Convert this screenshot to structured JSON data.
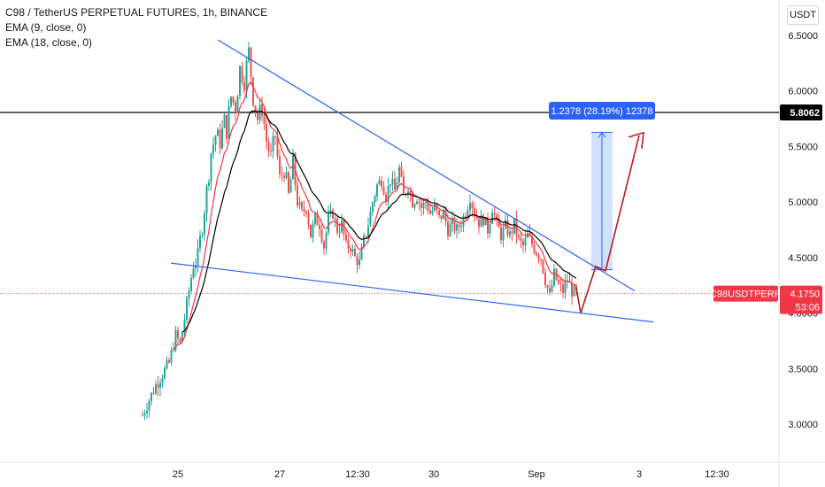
{
  "header": {
    "title": "C98 / TetherUS PERPETUAL FUTURES, 1h, BINANCE",
    "indicators": [
      "EMA (9, close, 0)",
      "EMA (18, close, 0)"
    ]
  },
  "price_axis": {
    "unit_label": "USDT",
    "ticks": [
      "6.5000",
      "6.0000",
      "5.5000",
      "5.0000",
      "4.5000",
      "4.0000",
      "3.5000",
      "3.0000"
    ],
    "horizontal_line_label": "5.8062",
    "horizontal_line_value": 5.8062,
    "current_price_label": "4.1750",
    "current_price_value": 4.175,
    "countdown": "53:06",
    "symbol_tag": "C98USDTPERP",
    "colors": {
      "tag_red": "#f23645",
      "line_black": "#000000"
    }
  },
  "time_axis": {
    "labels": [
      "25",
      "27",
      "12:30",
      "30",
      "Sep",
      "3",
      "12:30"
    ]
  },
  "measure_tool": {
    "label": "1.2378 (28.19%) 12378",
    "from_price": 4.39,
    "to_price": 5.628,
    "color": "#2962ff"
  },
  "colors": {
    "up": "#26a69a",
    "down": "#ef5350",
    "ema9": "#f23645",
    "ema18": "#000000",
    "trendline": "#2962ff",
    "projection": "#b71c1c"
  },
  "chart_data": {
    "type": "candlestick",
    "title": "C98 / TetherUS PERPETUAL FUTURES, 1h, BINANCE",
    "series": [
      {
        "name": "EMA (9, close, 0)",
        "type": "line"
      },
      {
        "name": "EMA (18, close, 0)",
        "type": "line"
      }
    ],
    "x_ticks": [
      "25",
      "27",
      "12:30",
      "30",
      "Sep",
      "3",
      "12:30"
    ],
    "ylim": [
      2.55,
      6.85
    ],
    "y_ticks": [
      6.5,
      6.0,
      5.5,
      5.0,
      4.5,
      4.0,
      3.5,
      3.0
    ],
    "price_path": [
      [
        0,
        3.08
      ],
      [
        3,
        3.22
      ],
      [
        6,
        3.35
      ],
      [
        9,
        3.45
      ],
      [
        12,
        3.55
      ],
      [
        15,
        3.8
      ],
      [
        17,
        3.72
      ],
      [
        19,
        3.95
      ],
      [
        21,
        4.2
      ],
      [
        23,
        4.45
      ],
      [
        25,
        4.5
      ],
      [
        27,
        4.8
      ],
      [
        29,
        5.1
      ],
      [
        31,
        5.45
      ],
      [
        33,
        5.6
      ],
      [
        35,
        5.55
      ],
      [
        37,
        5.72
      ],
      [
        38,
        5.65
      ],
      [
        40,
        5.95
      ],
      [
        42,
        5.85
      ],
      [
        44,
        6.2
      ],
      [
        46,
        6.1
      ],
      [
        48,
        6.35
      ],
      [
        50,
        5.95
      ],
      [
        52,
        5.75
      ],
      [
        54,
        5.85
      ],
      [
        56,
        5.55
      ],
      [
        58,
        5.4
      ],
      [
        60,
        5.6
      ],
      [
        62,
        5.2
      ],
      [
        64,
        5.3
      ],
      [
        66,
        5.05
      ],
      [
        68,
        5.35
      ],
      [
        70,
        5.0
      ],
      [
        72,
        4.9
      ],
      [
        74,
        4.95
      ],
      [
        76,
        4.7
      ],
      [
        78,
        4.85
      ],
      [
        80,
        4.8
      ],
      [
        82,
        4.6
      ],
      [
        84,
        4.85
      ],
      [
        86,
        4.9
      ],
      [
        88,
        4.75
      ],
      [
        90,
        4.8
      ],
      [
        92,
        4.6
      ],
      [
        94,
        4.6
      ],
      [
        96,
        4.5
      ],
      [
        98,
        4.45
      ],
      [
        100,
        4.65
      ],
      [
        102,
        4.8
      ],
      [
        104,
        5.0
      ],
      [
        106,
        5.15
      ],
      [
        108,
        5.2
      ],
      [
        110,
        5.05
      ],
      [
        112,
        5.2
      ],
      [
        114,
        5.1
      ],
      [
        116,
        5.3
      ],
      [
        118,
        5.05
      ],
      [
        120,
        5.15
      ],
      [
        122,
        5.0
      ],
      [
        124,
        5.05
      ],
      [
        126,
        4.95
      ],
      [
        128,
        5.0
      ],
      [
        130,
        4.9
      ],
      [
        132,
        4.95
      ],
      [
        134,
        4.85
      ],
      [
        136,
        4.9
      ],
      [
        138,
        4.75
      ],
      [
        140,
        4.8
      ],
      [
        142,
        4.75
      ],
      [
        144,
        4.82
      ],
      [
        146,
        4.9
      ],
      [
        148,
        5.05
      ],
      [
        150,
        4.9
      ],
      [
        152,
        4.82
      ],
      [
        154,
        4.85
      ],
      [
        156,
        4.75
      ],
      [
        158,
        4.95
      ],
      [
        160,
        4.8
      ],
      [
        162,
        4.7
      ],
      [
        164,
        4.78
      ],
      [
        166,
        4.7
      ],
      [
        168,
        4.8
      ],
      [
        170,
        4.65
      ],
      [
        172,
        4.6
      ],
      [
        174,
        4.7
      ],
      [
        176,
        4.62
      ],
      [
        178,
        4.55
      ],
      [
        180,
        4.5
      ],
      [
        182,
        4.3
      ],
      [
        184,
        4.15
      ],
      [
        186,
        4.35
      ],
      [
        188,
        4.25
      ],
      [
        190,
        4.2
      ],
      [
        192,
        4.3
      ],
      [
        194,
        4.2
      ],
      [
        196,
        4.175
      ]
    ],
    "trendlines": [
      {
        "from": [
          0.0,
          6.45
        ],
        "to": [
          1.0,
          4.2
        ],
        "label": ""
      },
      {
        "from": [
          0.0,
          4.45
        ],
        "to": [
          1.0,
          3.92
        ],
        "label": ""
      }
    ],
    "projection_path": [
      [
        4.35,
        4.175
      ],
      [
        4.05,
        4.42
      ],
      [
        4.35,
        4.4
      ],
      [
        5.65,
        5.6
      ]
    ]
  }
}
